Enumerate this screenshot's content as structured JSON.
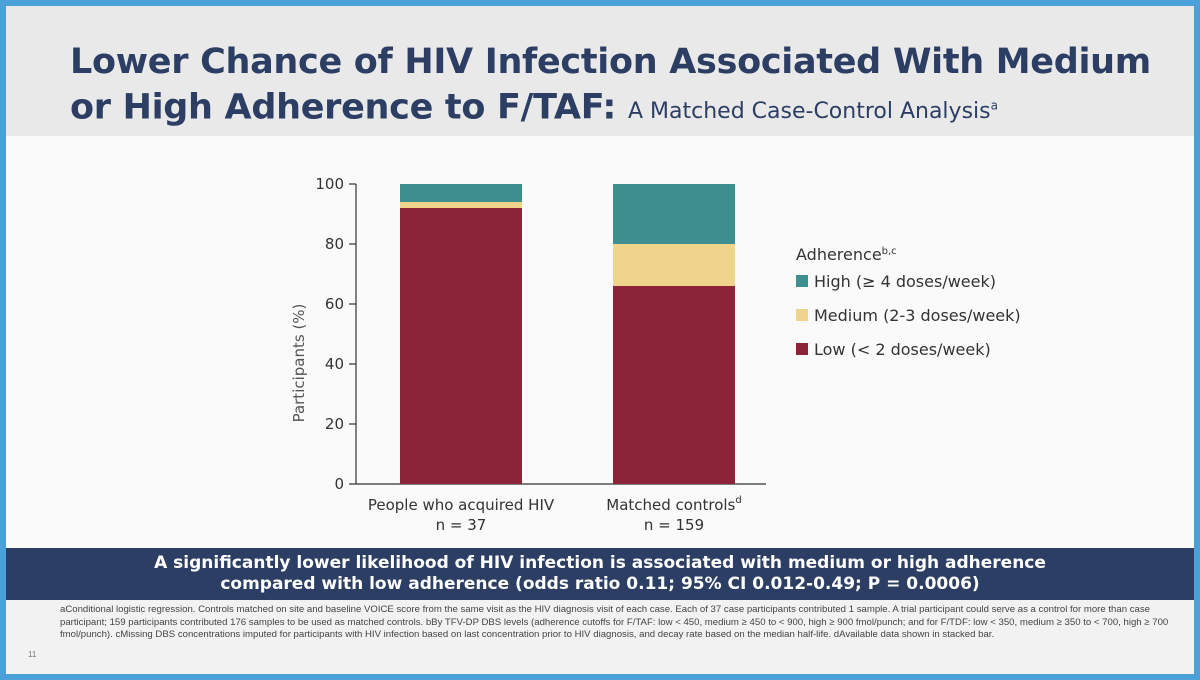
{
  "slide": {
    "title_main": "Lower Chance of HIV Infection Associated With Medium or High Adherence to F/TAF:",
    "title_sub": "A Matched Case-Control Analysis",
    "title_sup": "a",
    "banner_line1": "A significantly lower likelihood of HIV infection is associated with medium or high adherence",
    "banner_line2": "compared with low adherence (odds ratio 0.11; 95% CI 0.012-0.49; P = 0.0006)",
    "footnote": "aConditional logistic regression. Controls matched on site and baseline VOICE score from the same visit as the HIV diagnosis visit of each case. Each of 37 case participants contributed 1 sample. A trial participant could serve as a control for more than case participant; 159 participants contributed 176 samples to be used as matched controls. bBy TFV-DP DBS levels (adherence cutoffs for F/TAF: low < 450, medium ≥ 450 to < 900, high ≥ 900 fmol/punch; and for F/TDF: low < 350, medium ≥ 350 to < 700, high ≥ 700 fmol/punch). cMissing DBS concentrations imputed for participants with HIV infection based on last concentration prior to HIV diagnosis, and decay rate based on the median half-life. dAvailable data shown in stacked bar.",
    "page_number": "11"
  },
  "chart_data": {
    "type": "bar",
    "stacked": true,
    "title": "",
    "xlabel": "",
    "ylabel": "Participants (%)",
    "ylim": [
      0,
      100
    ],
    "yticks": [
      0,
      20,
      40,
      60,
      80,
      100
    ],
    "categories": [
      "People who acquired HIV",
      "Matched controls"
    ],
    "category_sublabels": [
      "n = 37",
      "n = 159"
    ],
    "category_sups": [
      "",
      "d"
    ],
    "legend_title": "Adherence",
    "legend_title_sup": "b,c",
    "legend_position": "right",
    "series": [
      {
        "name": "Low (< 2 doses/week)",
        "color": "#8b2439",
        "values": [
          92,
          66
        ]
      },
      {
        "name": "Medium (2-3 doses/week)",
        "color": "#efd58c",
        "values": [
          2,
          14
        ]
      },
      {
        "name": "High (≥ 4 doses/week)",
        "color": "#3d8f90",
        "values": [
          6,
          20
        ]
      }
    ],
    "legend_order": [
      2,
      1,
      0
    ]
  }
}
